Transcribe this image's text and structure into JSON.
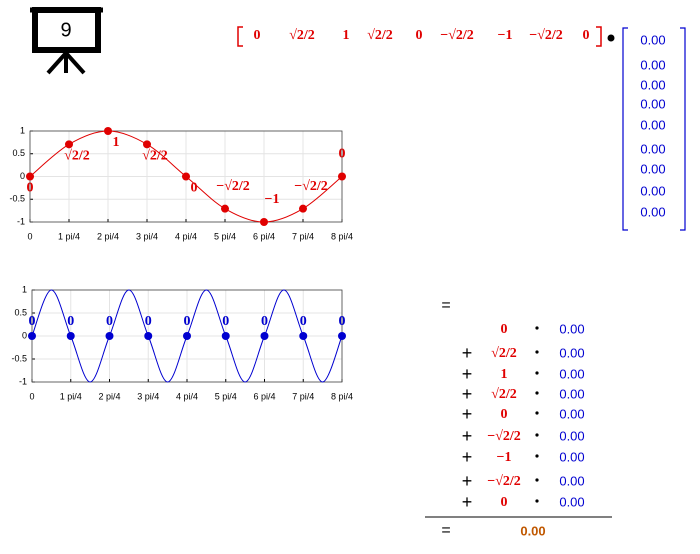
{
  "badge": "9",
  "row_vector": [
    "0",
    "√2/2",
    "1",
    "√2/2",
    "0",
    "−√2/2",
    "−1",
    "−√2/2",
    "0"
  ],
  "column_vector": [
    "0.00",
    "0.00",
    "0.00",
    "0.00",
    "0.00",
    "0.00",
    "0.00",
    "0.00",
    "0.00"
  ],
  "chart_data": [
    {
      "type": "line",
      "xlim": [
        0,
        8
      ],
      "ylim": [
        -1,
        1
      ],
      "grid": true,
      "xticks": [
        0,
        {
          "value": 1,
          "label": "1 pi/4"
        },
        {
          "value": 2,
          "label": "2 pi/4"
        },
        {
          "value": 3,
          "label": "3 pi/4"
        },
        {
          "value": 4,
          "label": "4 pi/4"
        },
        {
          "value": 5,
          "label": "5 pi/4"
        },
        {
          "value": 6,
          "label": "6 pi/4"
        },
        {
          "value": 7,
          "label": "7 pi/4"
        },
        {
          "value": 8,
          "label": "8 pi/4"
        }
      ],
      "yticks": [
        1,
        0.5,
        0,
        -0.5,
        -1
      ],
      "series": [
        {
          "color": "#e00000",
          "markers": true,
          "x": [
            0,
            1,
            2,
            3,
            4,
            5,
            6,
            7,
            8
          ],
          "values": [
            0,
            0.707,
            1,
            0.707,
            0,
            -0.707,
            -1,
            -0.707,
            0
          ],
          "value_labels": [
            "0",
            "√2/2",
            "1",
            "√2/2",
            "0",
            "−√2/2",
            "−1",
            "−√2/2",
            "0"
          ]
        }
      ]
    },
    {
      "type": "line",
      "xlim": [
        0,
        8
      ],
      "ylim": [
        -1,
        1
      ],
      "grid": true,
      "xticks": [
        0,
        {
          "value": 1,
          "label": "1 pi/4"
        },
        {
          "value": 2,
          "label": "2 pi/4"
        },
        {
          "value": 3,
          "label": "3 pi/4"
        },
        {
          "value": 4,
          "label": "4 pi/4"
        },
        {
          "value": 5,
          "label": "5 pi/4"
        },
        {
          "value": 6,
          "label": "6 pi/4"
        },
        {
          "value": 7,
          "label": "7 pi/4"
        },
        {
          "value": 8,
          "label": "8 pi/4"
        }
      ],
      "yticks": [
        1,
        0.5,
        0,
        -0.5,
        -1
      ],
      "series": [
        {
          "color": "#0000d0",
          "markers": false,
          "x": [
            0,
            0.5,
            1,
            1.5,
            2,
            2.5,
            3,
            3.5,
            4,
            4.5,
            5,
            5.5,
            6,
            6.5,
            7,
            7.5,
            8
          ],
          "values": [
            0,
            1,
            0,
            -1,
            0,
            1,
            0,
            -1,
            0,
            1,
            0,
            -1,
            0,
            1,
            0,
            -1,
            0
          ]
        },
        {
          "color": "#0000d0",
          "markers": true,
          "lineless": true,
          "x": [
            0,
            1,
            2,
            3,
            4,
            5,
            6,
            7,
            8
          ],
          "values": [
            0,
            0,
            0,
            0,
            0,
            0,
            0,
            0,
            0
          ]
        }
      ]
    }
  ],
  "sum": {
    "equals": "=",
    "rows": [
      {
        "term": "0",
        "coef": "0.00"
      },
      {
        "op": "+",
        "term": "√2/2",
        "coef": "0.00"
      },
      {
        "op": "+",
        "term": "1",
        "coef": "0.00"
      },
      {
        "op": "+",
        "term": "√2/2",
        "coef": "0.00"
      },
      {
        "op": "+",
        "term": "0",
        "coef": "0.00"
      },
      {
        "op": "+",
        "term": "−√2/2",
        "coef": "0.00"
      },
      {
        "op": "+",
        "term": "−1",
        "coef": "0.00"
      },
      {
        "op": "+",
        "term": "−√2/2",
        "coef": "0.00"
      },
      {
        "op": "+",
        "term": "0",
        "coef": "0.00"
      }
    ],
    "result_equals": "=",
    "result": "0.00"
  }
}
